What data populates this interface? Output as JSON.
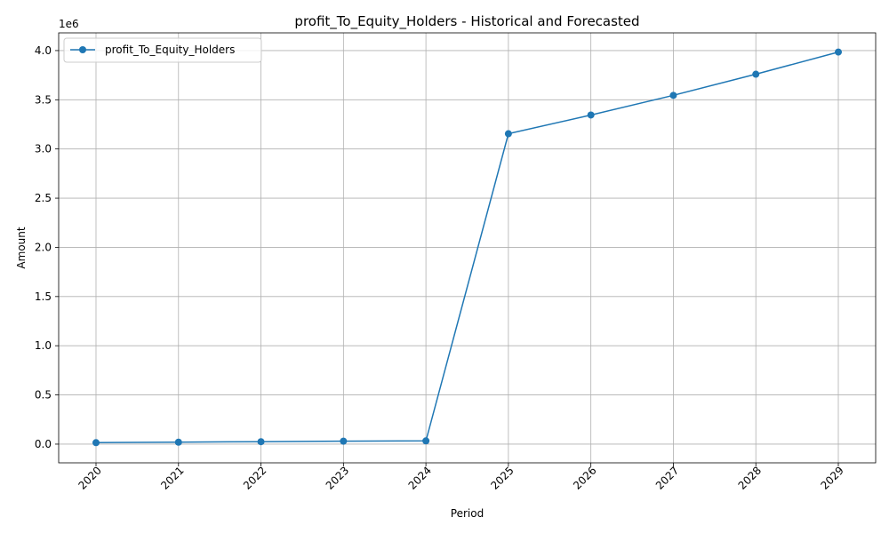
{
  "chart_data": {
    "type": "line",
    "title": "profit_To_Equity_Holders - Historical and Forecasted",
    "xlabel": "Period",
    "ylabel": "Amount",
    "y_offset_label": "1e6",
    "categories": [
      "2020",
      "2021",
      "2022",
      "2023",
      "2024",
      "2025",
      "2026",
      "2027",
      "2028",
      "2029"
    ],
    "series": [
      {
        "name": "profit_To_Equity_Holders",
        "color": "#1f77b4",
        "values": [
          15000,
          20000,
          25000,
          30000,
          33000,
          3155000,
          3345000,
          3545000,
          3760000,
          3985000
        ]
      }
    ],
    "yticks": [
      "0.0",
      "0.5",
      "1.0",
      "1.5",
      "2.0",
      "2.5",
      "3.0",
      "3.5",
      "4.0"
    ],
    "ytick_values": [
      0,
      500000,
      1000000,
      1500000,
      2000000,
      2500000,
      3000000,
      3500000,
      4000000
    ],
    "ylim": [
      -190000,
      4180000
    ],
    "grid": true,
    "legend_position": "top-left"
  }
}
